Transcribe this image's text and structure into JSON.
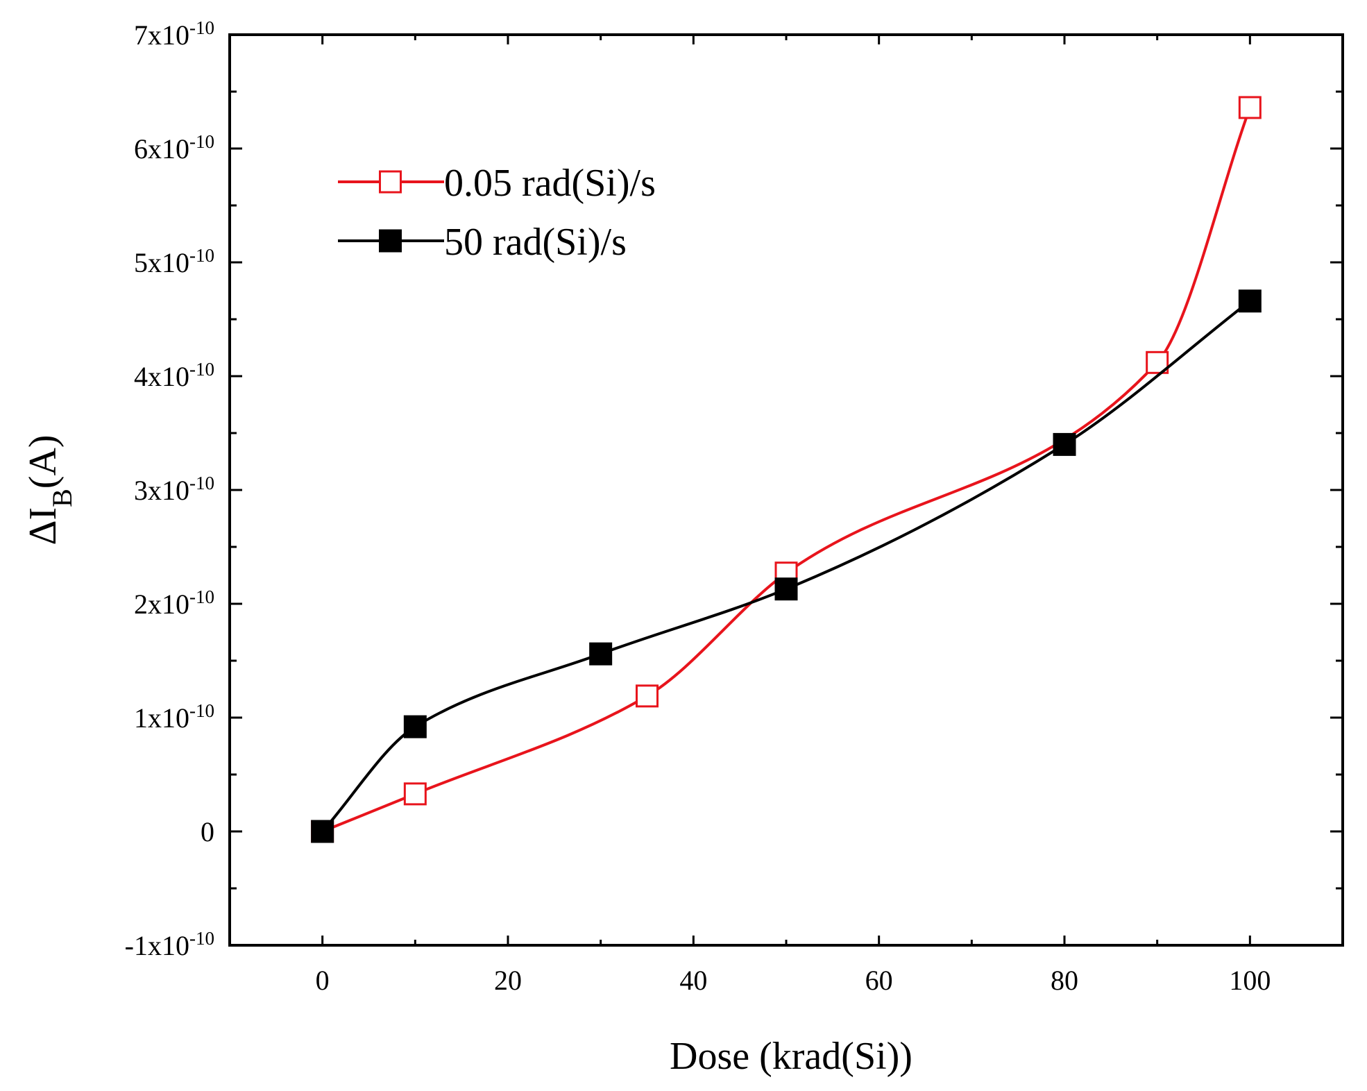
{
  "chart_data": {
    "type": "line",
    "title": "",
    "xlabel": "Dose (krad(Si))",
    "ylabel": {
      "prefix": "ΔI",
      "subscript": "B",
      "suffix": "(A)"
    },
    "xlim": [
      -10,
      110
    ],
    "ylim": [
      -1e-10,
      7e-10
    ],
    "x_ticks": [
      0,
      20,
      40,
      60,
      80,
      100
    ],
    "x_tick_labels": [
      "0",
      "20",
      "40",
      "60",
      "80",
      "100"
    ],
    "y_ticks": [
      {
        "value": -1e-10,
        "base": "-1x10",
        "exp": "-10"
      },
      {
        "value": 0,
        "base": "0",
        "exp": ""
      },
      {
        "value": 1e-10,
        "base": "1x10",
        "exp": "-10"
      },
      {
        "value": 2e-10,
        "base": "2x10",
        "exp": "-10"
      },
      {
        "value": 3e-10,
        "base": "3x10",
        "exp": "-10"
      },
      {
        "value": 4e-10,
        "base": "4x10",
        "exp": "-10"
      },
      {
        "value": 5e-10,
        "base": "5x10",
        "exp": "-10"
      },
      {
        "value": 6e-10,
        "base": "6x10",
        "exp": "-10"
      },
      {
        "value": 7e-10,
        "base": "7x10",
        "exp": "-10"
      }
    ],
    "legend_position": "top-left",
    "series": [
      {
        "name": "0.05 rad(Si)/s",
        "color": "#e8141c",
        "marker": "open-square",
        "x": [
          0,
          10,
          35,
          50,
          90,
          100
        ],
        "values": [
          0,
          3.3e-11,
          1.19e-10,
          2.27e-10,
          4.12e-10,
          6.36e-10
        ]
      },
      {
        "name": "50 rad(Si)/s",
        "color": "#000000",
        "marker": "filled-square",
        "x": [
          0,
          10,
          30,
          50,
          80,
          100
        ],
        "values": [
          0,
          9.2e-11,
          1.56e-10,
          2.13e-10,
          3.4e-10,
          4.66e-10
        ]
      }
    ]
  }
}
